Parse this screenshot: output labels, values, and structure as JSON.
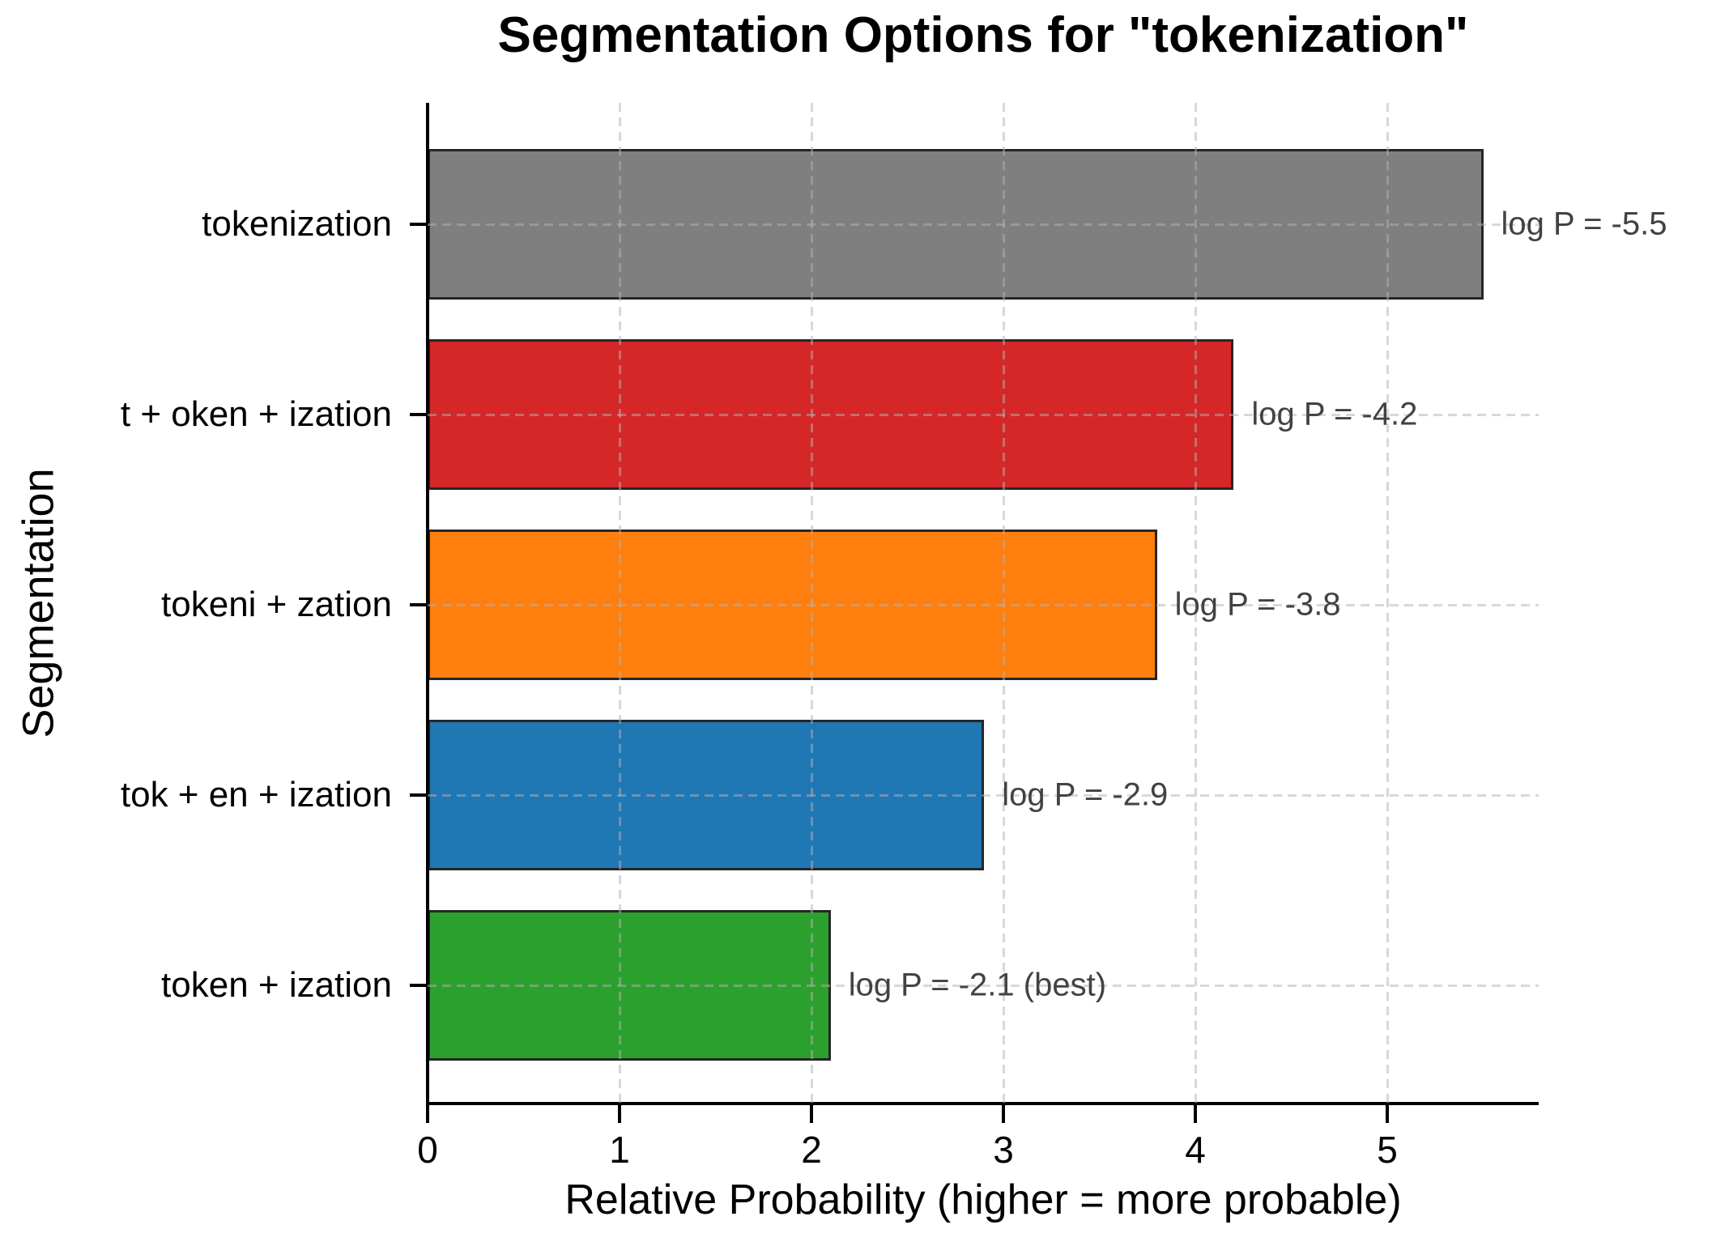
{
  "chart_data": {
    "type": "bar",
    "orientation": "horizontal",
    "title": "Segmentation Options for \"tokenization\"",
    "xlabel": "Relative Probability (higher = more probable)",
    "ylabel": "Segmentation",
    "categories": [
      "tokenization",
      "t + oken + ization",
      "tokeni + zation",
      "tok + en + ization",
      "token + ization"
    ],
    "values": [
      5.5,
      4.2,
      3.8,
      2.9,
      2.1
    ],
    "bar_labels": [
      "log P = -5.5",
      "log P = -4.2",
      "log P = -3.8",
      "log P = -2.9",
      "log P = -2.1 (best)"
    ],
    "bar_colors": [
      "#7f7f7f",
      "#d62728",
      "#ff7f0e",
      "#1f77b4",
      "#2ca02c"
    ],
    "xticks": [
      0,
      1,
      2,
      3,
      4,
      5
    ],
    "xlim": [
      0,
      5.79
    ],
    "grid": "dashed, drawn over bars",
    "legend": false
  },
  "colors": {
    "bar_edge": "#262626",
    "annotation": "#424242",
    "grid": "rgba(178,178,178,0.5)",
    "axis": "#000000",
    "background": "#ffffff"
  }
}
